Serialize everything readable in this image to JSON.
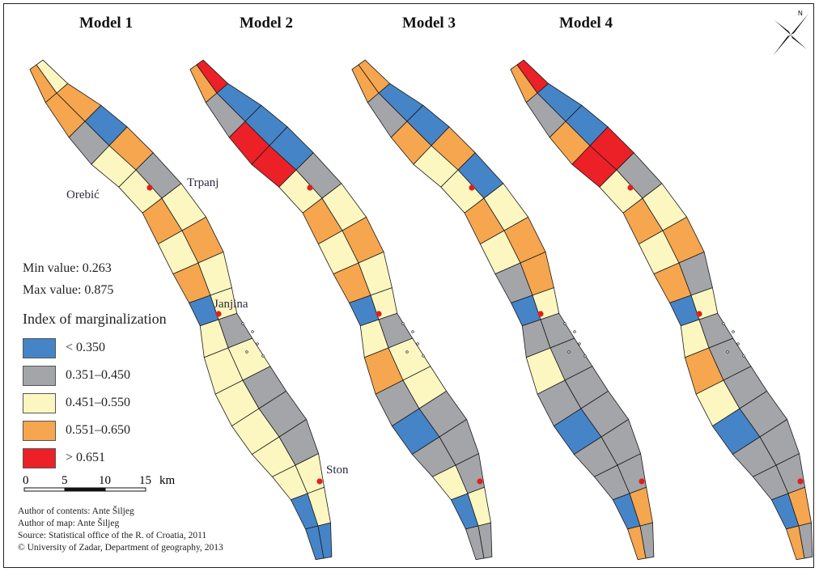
{
  "titles": [
    "Model 1",
    "Model 2",
    "Model 3",
    "Model 4"
  ],
  "places": {
    "orebic": "Orebić",
    "trpanj": "Trpanj",
    "janjina": "Janjina",
    "ston": "Ston"
  },
  "stats": {
    "min": "Min value: 0.263",
    "max": "Max value: 0.875"
  },
  "legend": {
    "title": "Index of marginalization",
    "classes": [
      {
        "label": "< 0.350",
        "color": "#4684c8"
      },
      {
        "label": "0.351–0.450",
        "color": "#a4a5a8"
      },
      {
        "label": "0.451–0.550",
        "color": "#fcf7c0"
      },
      {
        "label": "0.551–0.650",
        "color": "#f5a64e"
      },
      {
        "label": "> 0.651",
        "color": "#eb2127"
      }
    ]
  },
  "scale": {
    "ticks": [
      "0",
      "5",
      "10",
      "15"
    ],
    "unit": "km"
  },
  "credits": {
    "author_contents": "Author of contents: Ante Šiljeg",
    "author_map": "Author of map: Ante Šiljeg",
    "source": "Source: Statistical office of the R. of Croatia, 2011",
    "copyright": "© University of Zadar, Department of geography, 2013"
  },
  "map_colors": {
    "outline": "#1a1a1a",
    "settlement": "#e0201f"
  },
  "models": [
    [
      "orange",
      "yellow",
      "orange",
      "orange",
      "grey",
      "blue",
      "yellow",
      "orange",
      "yellow",
      "grey",
      "orange",
      "yellow",
      "yellow",
      "orange",
      "orange",
      "yellow",
      "blue",
      "yellow",
      "yellow",
      "grey",
      "yellow",
      "yellow",
      "yellow",
      "grey",
      "yellow",
      "grey",
      "yellow",
      "grey",
      "yellow",
      "yellow",
      "blue",
      "yellow",
      "blue",
      "blue"
    ],
    [
      "orange",
      "red",
      "grey",
      "blue",
      "red",
      "blue",
      "red",
      "blue",
      "yellow",
      "grey",
      "orange",
      "yellow",
      "yellow",
      "orange",
      "orange",
      "yellow",
      "blue",
      "yellow",
      "yellow",
      "grey",
      "orange",
      "yellow",
      "grey",
      "yellow",
      "blue",
      "grey",
      "grey",
      "grey",
      "yellow",
      "grey",
      "blue",
      "yellow",
      "grey",
      "grey"
    ],
    [
      "orange",
      "orange",
      "grey",
      "blue",
      "orange",
      "blue",
      "yellow",
      "orange",
      "yellow",
      "blue",
      "orange",
      "yellow",
      "yellow",
      "orange",
      "grey",
      "orange",
      "blue",
      "yellow",
      "grey",
      "grey",
      "yellow",
      "grey",
      "grey",
      "grey",
      "blue",
      "grey",
      "grey",
      "grey",
      "grey",
      "grey",
      "blue",
      "orange",
      "orange",
      "grey"
    ],
    [
      "orange",
      "red",
      "grey",
      "blue",
      "orange",
      "blue",
      "red",
      "red",
      "yellow",
      "grey",
      "orange",
      "yellow",
      "yellow",
      "orange",
      "orange",
      "grey",
      "blue",
      "yellow",
      "yellow",
      "grey",
      "orange",
      "grey",
      "yellow",
      "grey",
      "blue",
      "grey",
      "grey",
      "grey",
      "grey",
      "grey",
      "blue",
      "orange",
      "orange",
      "grey"
    ]
  ]
}
